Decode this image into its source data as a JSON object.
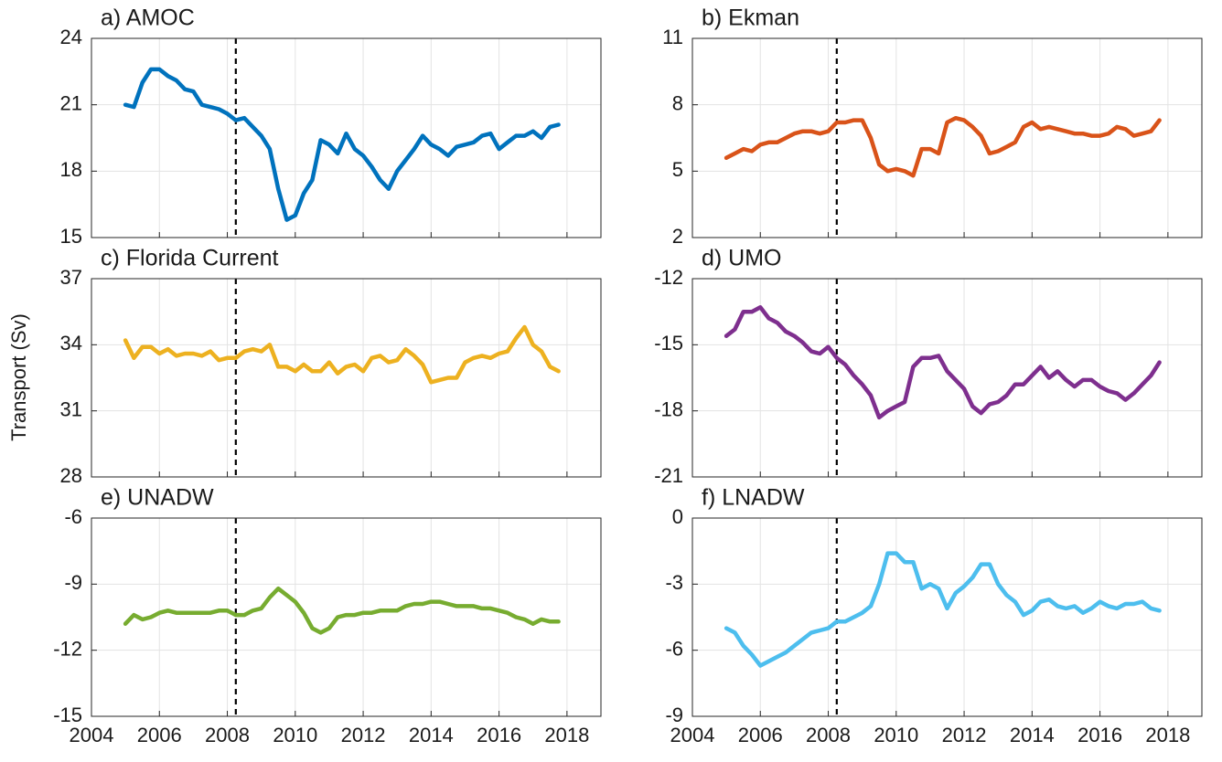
{
  "chart_data": [
    {
      "type": "line",
      "title": "a) AMOC",
      "color": "#0072bd",
      "vline": 2008.25,
      "grid": true,
      "xlim": [
        2004,
        2019
      ],
      "xticks": [
        2004,
        2006,
        2008,
        2010,
        2012,
        2014,
        2016,
        2018
      ],
      "ylim": [
        15,
        24
      ],
      "yticks": [
        15,
        18,
        21,
        24
      ],
      "x": [
        2005,
        2005.25,
        2005.5,
        2005.75,
        2006,
        2006.25,
        2006.5,
        2006.75,
        2007,
        2007.25,
        2007.5,
        2007.75,
        2008,
        2008.25,
        2008.5,
        2008.75,
        2009,
        2009.25,
        2009.5,
        2009.75,
        2010,
        2010.25,
        2010.5,
        2010.75,
        2011,
        2011.25,
        2011.5,
        2011.75,
        2012,
        2012.25,
        2012.5,
        2012.75,
        2013,
        2013.25,
        2013.5,
        2013.75,
        2014,
        2014.25,
        2014.5,
        2014.75,
        2015,
        2015.25,
        2015.5,
        2015.75,
        2016,
        2016.25,
        2016.5,
        2016.75,
        2017,
        2017.25,
        2017.5,
        2017.75
      ],
      "values": [
        21.0,
        20.9,
        22.0,
        22.6,
        22.6,
        22.3,
        22.1,
        21.7,
        21.6,
        21.0,
        20.9,
        20.8,
        20.6,
        20.3,
        20.4,
        20.0,
        19.6,
        19.0,
        17.2,
        15.8,
        16.0,
        17.0,
        17.6,
        19.4,
        19.2,
        18.8,
        19.7,
        19.0,
        18.7,
        18.2,
        17.6,
        17.2,
        18.0,
        18.5,
        19.0,
        19.6,
        19.2,
        19.0,
        18.7,
        19.1,
        19.2,
        19.3,
        19.6,
        19.7,
        19.0,
        19.3,
        19.6,
        19.6,
        19.8,
        19.5,
        20.0,
        20.1
      ]
    },
    {
      "type": "line",
      "title": "b) Ekman",
      "color": "#d95319",
      "vline": 2008.25,
      "grid": true,
      "xlim": [
        2004,
        2019
      ],
      "xticks": [
        2004,
        2006,
        2008,
        2010,
        2012,
        2014,
        2016,
        2018
      ],
      "ylim": [
        2,
        11
      ],
      "yticks": [
        2,
        5,
        8,
        11
      ],
      "x": [
        2005,
        2005.25,
        2005.5,
        2005.75,
        2006,
        2006.25,
        2006.5,
        2006.75,
        2007,
        2007.25,
        2007.5,
        2007.75,
        2008,
        2008.25,
        2008.5,
        2008.75,
        2009,
        2009.25,
        2009.5,
        2009.75,
        2010,
        2010.25,
        2010.5,
        2010.75,
        2011,
        2011.25,
        2011.5,
        2011.75,
        2012,
        2012.25,
        2012.5,
        2012.75,
        2013,
        2013.25,
        2013.5,
        2013.75,
        2014,
        2014.25,
        2014.5,
        2014.75,
        2015,
        2015.25,
        2015.5,
        2015.75,
        2016,
        2016.25,
        2016.5,
        2016.75,
        2017,
        2017.25,
        2017.5,
        2017.75
      ],
      "values": [
        5.6,
        5.8,
        6.0,
        5.9,
        6.2,
        6.3,
        6.3,
        6.5,
        6.7,
        6.8,
        6.8,
        6.7,
        6.8,
        7.2,
        7.2,
        7.3,
        7.3,
        6.5,
        5.3,
        5.0,
        5.1,
        5.0,
        4.8,
        6.0,
        6.0,
        5.8,
        7.2,
        7.4,
        7.3,
        7.0,
        6.6,
        5.8,
        5.9,
        6.1,
        6.3,
        7.0,
        7.2,
        6.9,
        7.0,
        6.9,
        6.8,
        6.7,
        6.7,
        6.6,
        6.6,
        6.7,
        7.0,
        6.9,
        6.6,
        6.7,
        6.8,
        7.3
      ]
    },
    {
      "type": "line",
      "title": "c) Florida Current",
      "ylabel": "Transport (Sv)",
      "color": "#edb120",
      "vline": 2008.25,
      "grid": true,
      "xlim": [
        2004,
        2019
      ],
      "xticks": [
        2004,
        2006,
        2008,
        2010,
        2012,
        2014,
        2016,
        2018
      ],
      "ylim": [
        28,
        37
      ],
      "yticks": [
        28,
        31,
        34,
        37
      ],
      "x": [
        2005,
        2005.25,
        2005.5,
        2005.75,
        2006,
        2006.25,
        2006.5,
        2006.75,
        2007,
        2007.25,
        2007.5,
        2007.75,
        2008,
        2008.25,
        2008.5,
        2008.75,
        2009,
        2009.25,
        2009.5,
        2009.75,
        2010,
        2010.25,
        2010.5,
        2010.75,
        2011,
        2011.25,
        2011.5,
        2011.75,
        2012,
        2012.25,
        2012.5,
        2012.75,
        2013,
        2013.25,
        2013.5,
        2013.75,
        2014,
        2014.25,
        2014.5,
        2014.75,
        2015,
        2015.25,
        2015.5,
        2015.75,
        2016,
        2016.25,
        2016.5,
        2016.75,
        2017,
        2017.25,
        2017.5,
        2017.75
      ],
      "values": [
        34.2,
        33.4,
        33.9,
        33.9,
        33.6,
        33.8,
        33.5,
        33.6,
        33.6,
        33.5,
        33.7,
        33.3,
        33.4,
        33.4,
        33.7,
        33.8,
        33.7,
        34.0,
        33.0,
        33.0,
        32.8,
        33.1,
        32.8,
        32.8,
        33.2,
        32.7,
        33.0,
        33.1,
        32.8,
        33.4,
        33.5,
        33.2,
        33.3,
        33.8,
        33.5,
        33.1,
        32.3,
        32.4,
        32.5,
        32.5,
        33.2,
        33.4,
        33.5,
        33.4,
        33.6,
        33.7,
        34.3,
        34.8,
        34.0,
        33.7,
        33.0,
        32.8
      ]
    },
    {
      "type": "line",
      "title": "d) UMO",
      "color": "#7e2f8e",
      "vline": 2008.25,
      "grid": true,
      "xlim": [
        2004,
        2019
      ],
      "xticks": [
        2004,
        2006,
        2008,
        2010,
        2012,
        2014,
        2016,
        2018
      ],
      "ylim": [
        -21,
        -12
      ],
      "yticks": [
        -21,
        -18,
        -15,
        -12
      ],
      "x": [
        2005,
        2005.25,
        2005.5,
        2005.75,
        2006,
        2006.25,
        2006.5,
        2006.75,
        2007,
        2007.25,
        2007.5,
        2007.75,
        2008,
        2008.25,
        2008.5,
        2008.75,
        2009,
        2009.25,
        2009.5,
        2009.75,
        2010,
        2010.25,
        2010.5,
        2010.75,
        2011,
        2011.25,
        2011.5,
        2011.75,
        2012,
        2012.25,
        2012.5,
        2012.75,
        2013,
        2013.25,
        2013.5,
        2013.75,
        2014,
        2014.25,
        2014.5,
        2014.75,
        2015,
        2015.25,
        2015.5,
        2015.75,
        2016,
        2016.25,
        2016.5,
        2016.75,
        2017,
        2017.25,
        2017.5,
        2017.75
      ],
      "values": [
        -14.6,
        -14.3,
        -13.5,
        -13.5,
        -13.3,
        -13.8,
        -14.0,
        -14.4,
        -14.6,
        -14.9,
        -15.3,
        -15.4,
        -15.1,
        -15.6,
        -15.9,
        -16.4,
        -16.8,
        -17.3,
        -18.3,
        -18.0,
        -17.8,
        -17.6,
        -16.0,
        -15.6,
        -15.6,
        -15.5,
        -16.2,
        -16.6,
        -17.0,
        -17.8,
        -18.1,
        -17.7,
        -17.6,
        -17.3,
        -16.8,
        -16.8,
        -16.4,
        -16.0,
        -16.5,
        -16.2,
        -16.6,
        -16.9,
        -16.6,
        -16.6,
        -16.9,
        -17.1,
        -17.2,
        -17.5,
        -17.2,
        -16.8,
        -16.4,
        -15.8
      ]
    },
    {
      "type": "line",
      "title": "e) UNADW",
      "color": "#77ac30",
      "vline": 2008.25,
      "grid": true,
      "xlim": [
        2004,
        2019
      ],
      "xticks": [
        2004,
        2006,
        2008,
        2010,
        2012,
        2014,
        2016,
        2018
      ],
      "ylim": [
        -15,
        -6
      ],
      "yticks": [
        -15,
        -12,
        -9,
        -6
      ],
      "x": [
        2005,
        2005.25,
        2005.5,
        2005.75,
        2006,
        2006.25,
        2006.5,
        2006.75,
        2007,
        2007.25,
        2007.5,
        2007.75,
        2008,
        2008.25,
        2008.5,
        2008.75,
        2009,
        2009.25,
        2009.5,
        2009.75,
        2010,
        2010.25,
        2010.5,
        2010.75,
        2011,
        2011.25,
        2011.5,
        2011.75,
        2012,
        2012.25,
        2012.5,
        2012.75,
        2013,
        2013.25,
        2013.5,
        2013.75,
        2014,
        2014.25,
        2014.5,
        2014.75,
        2015,
        2015.25,
        2015.5,
        2015.75,
        2016,
        2016.25,
        2016.5,
        2016.75,
        2017,
        2017.25,
        2017.5,
        2017.75
      ],
      "values": [
        -10.8,
        -10.4,
        -10.6,
        -10.5,
        -10.3,
        -10.2,
        -10.3,
        -10.3,
        -10.3,
        -10.3,
        -10.3,
        -10.2,
        -10.2,
        -10.4,
        -10.4,
        -10.2,
        -10.1,
        -9.6,
        -9.2,
        -9.5,
        -9.8,
        -10.3,
        -11.0,
        -11.2,
        -11.0,
        -10.5,
        -10.4,
        -10.4,
        -10.3,
        -10.3,
        -10.2,
        -10.2,
        -10.2,
        -10.0,
        -9.9,
        -9.9,
        -9.8,
        -9.8,
        -9.9,
        -10.0,
        -10.0,
        -10.0,
        -10.1,
        -10.1,
        -10.2,
        -10.3,
        -10.5,
        -10.6,
        -10.8,
        -10.6,
        -10.7,
        -10.7
      ]
    },
    {
      "type": "line",
      "title": "f) LNADW",
      "color": "#4dbeee",
      "vline": 2008.25,
      "grid": true,
      "xlim": [
        2004,
        2019
      ],
      "xticks": [
        2004,
        2006,
        2008,
        2010,
        2012,
        2014,
        2016,
        2018
      ],
      "ylim": [
        -9,
        0
      ],
      "yticks": [
        -9,
        -6,
        -3,
        0
      ],
      "x": [
        2005,
        2005.25,
        2005.5,
        2005.75,
        2006,
        2006.25,
        2006.5,
        2006.75,
        2007,
        2007.25,
        2007.5,
        2007.75,
        2008,
        2008.25,
        2008.5,
        2008.75,
        2009,
        2009.25,
        2009.5,
        2009.75,
        2010,
        2010.25,
        2010.5,
        2010.75,
        2011,
        2011.25,
        2011.5,
        2011.75,
        2012,
        2012.25,
        2012.5,
        2012.75,
        2013,
        2013.25,
        2013.5,
        2013.75,
        2014,
        2014.25,
        2014.5,
        2014.75,
        2015,
        2015.25,
        2015.5,
        2015.75,
        2016,
        2016.25,
        2016.5,
        2016.75,
        2017,
        2017.25,
        2017.5,
        2017.75
      ],
      "values": [
        -5.0,
        -5.2,
        -5.8,
        -6.2,
        -6.7,
        -6.5,
        -6.3,
        -6.1,
        -5.8,
        -5.5,
        -5.2,
        -5.1,
        -5.0,
        -4.7,
        -4.7,
        -4.5,
        -4.3,
        -4.0,
        -3.0,
        -1.6,
        -1.6,
        -2.0,
        -2.0,
        -3.2,
        -3.0,
        -3.2,
        -4.1,
        -3.4,
        -3.1,
        -2.7,
        -2.1,
        -2.1,
        -3.0,
        -3.5,
        -3.8,
        -4.4,
        -4.2,
        -3.8,
        -3.7,
        -4.0,
        -4.1,
        -4.0,
        -4.3,
        -4.1,
        -3.8,
        -4.0,
        -4.1,
        -3.9,
        -3.9,
        -3.8,
        -4.1,
        -4.2
      ]
    }
  ]
}
